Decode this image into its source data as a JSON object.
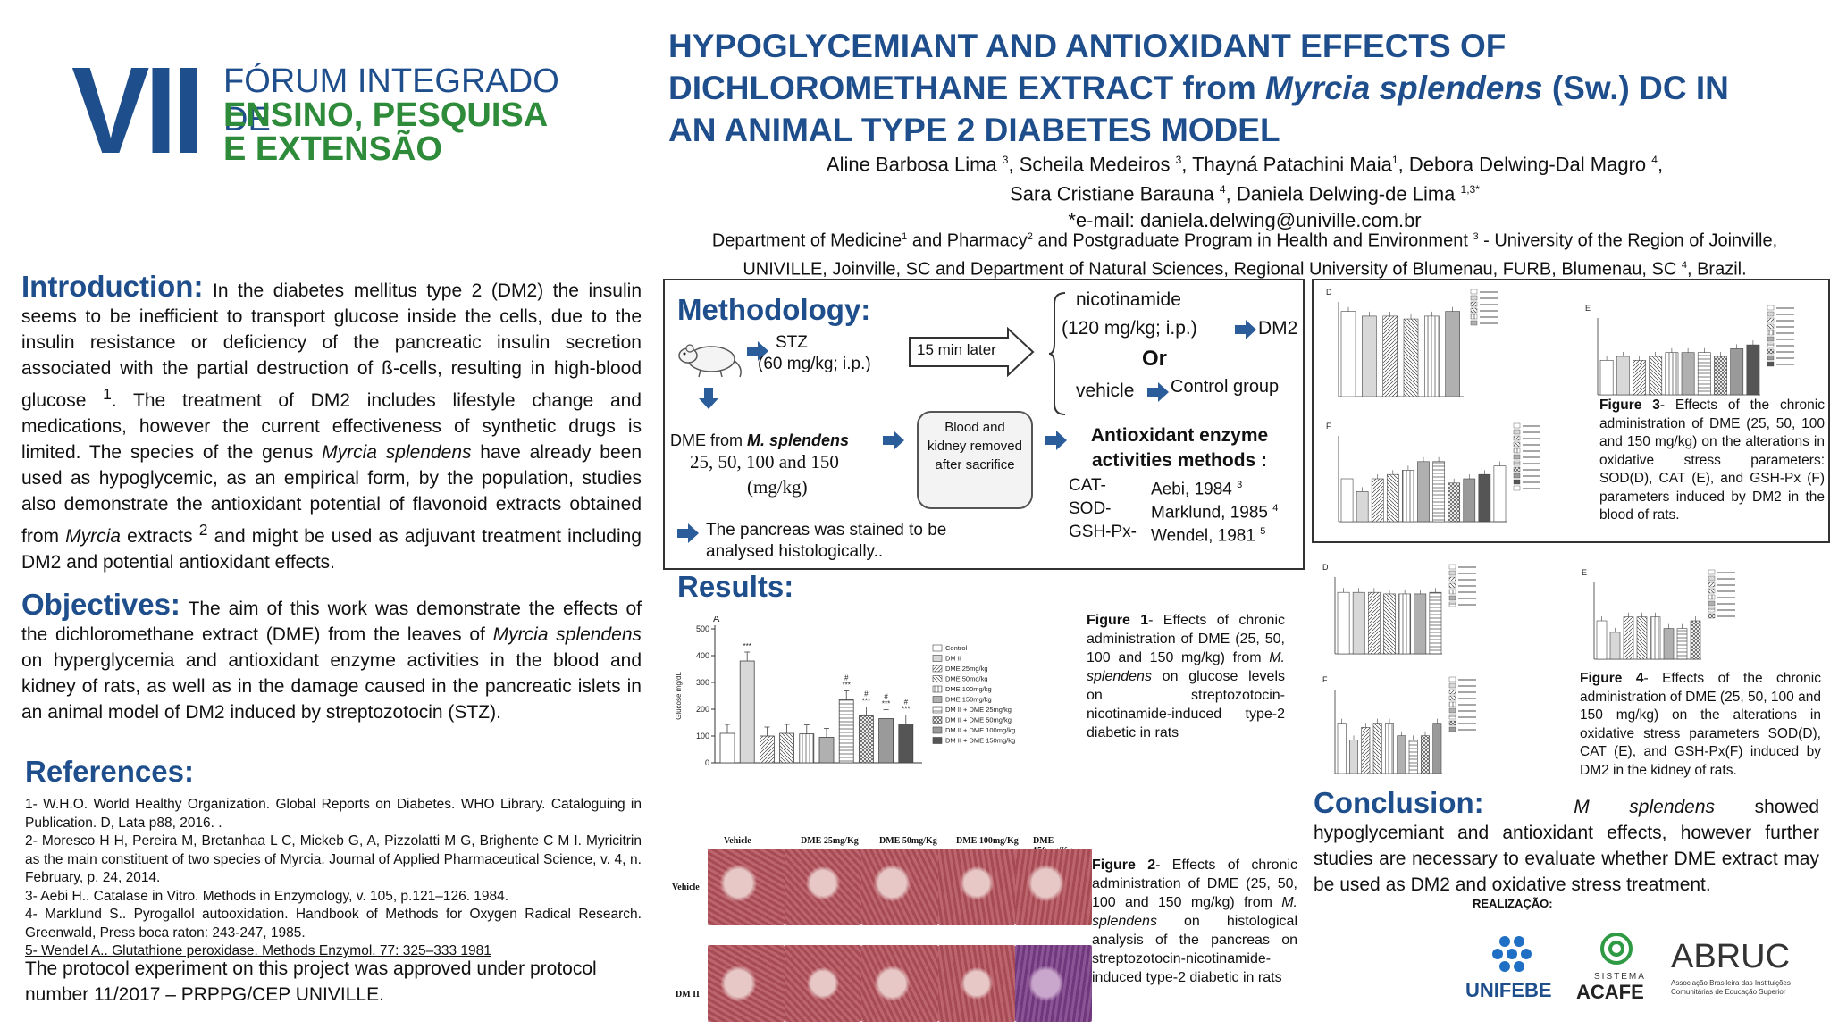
{
  "logo": {
    "roman": "VII",
    "line1": "FÓRUM INTEGRADO DE",
    "line2": "ENSINO, PESQUISA",
    "line3": "E EXTENSÃO"
  },
  "title": {
    "part1": "HYPOGLYCEMIANT AND ANTIOXIDANT EFFECTS OF",
    "part2a": "DICHLOROMETHANE EXTRACT from ",
    "part2_italic": "Myrcia splendens",
    "part2b": " (Sw.) DC IN",
    "part3": "AN ANIMAL TYPE 2 DIABETES MODEL"
  },
  "authors": {
    "a1": "Aline Barbosa Lima",
    "a1_sup": "3",
    "a2": ", Scheila Medeiros",
    "a2_sup": "3",
    "a3": ", Thayná Patachini Maia",
    "a3_sup": "1",
    "a4": ",  Debora Delwing-Dal Magro",
    "a4_sup": "4",
    "a4_end": ",",
    "a5": "Sara Cristiane Barauna",
    "a5_sup": "4",
    "a6": ", Daniela Delwing-de Lima",
    "a6_sup": "1,3*",
    "email": "*e-mail: daniela.delwing@univille.com.br"
  },
  "affiliation": {
    "p1": "Department of Medicine",
    "s1": "1",
    "p2": " and Pharmacy",
    "s2": "2",
    "p3": " and Postgraduate Program in Health and Environment ",
    "s3": "3",
    "p4": " - University of the Region of Joinville,",
    "p5": "UNIVILLE, Joinville, SC and Department of Natural Sciences, Regional University of Blumenau, FURB, Blumenau, SC ",
    "s5": "4",
    "p6": ", Brazil."
  },
  "introduction": {
    "heading": "Introduction:",
    "t1": " In the diabetes mellitus type 2 (DM2) the insulin seems to be inefficient to transport glucose inside the cells, due to the insulin resistance or deficiency of the pancreatic insulin secretion associated with the partial destruction of ß-cells, resulting in high-blood glucose ",
    "sup1": "1",
    "t2": ". The treatment of DM2 includes lifestyle change and medications, however the current effectiveness of synthetic drugs is limited. The species of the genus ",
    "i1": "Myrcia splendens",
    "t3": " have already been used as hypoglycemic, as an empirical form, by the population, studies also demonstrate the antioxidant potential of flavonoid extracts obtained from ",
    "i2": "Myrcia",
    "t4": " extracts ",
    "sup2": "2",
    "t5": " and might be used as adjuvant treatment including DM2 and potential antioxidant effects."
  },
  "objectives": {
    "heading": "Objectives:",
    "t1": " The aim of this work was demonstrate the effects of the dichloromethane extract (DME) from the leaves of ",
    "i1": "Myrcia splendens",
    "t2": " on hyperglycemia and antioxidant enzyme activities in the blood and kidney of rats, as well as in the damage caused in the pancreatic islets in an animal model of DM2 induced by streptozotocin (STZ)."
  },
  "references": {
    "heading": "References:",
    "items": [
      "1- W.H.O. World Healthy Organization. Global Reports on Diabetes. WHO Library. Cataloguing in Publication. D, Lata p88, 2016. .",
      "2- Moresco H H, Pereira M, Bretanhaa L C,  Mickeb G, A, Pizzolatti M G, Brighente C M I. Myricitrin as the main constituent of two species of Myrcia. Journal of Applied Pharmaceutical Science, v. 4, n. February, p. 24, 2014.",
      "3- Aebi H.. Catalase in Vitro. Methods in Enzymology, v. 105, p.121–126. 1984.",
      "4- Marklund S.. Pyrogallol autooxidation. Handbook of Methods for Oxygen Radical Research. Greenwald, Press boca raton: 243-247,  1985.",
      "5- Wendel A.. Glutathione peroxidase. Methods Enzymol. 77: 325–333  1981"
    ],
    "protocol": "The protocol experiment on this  project was approved under protocol number 11/2017 – PRPPG/CEP UNIVILLE."
  },
  "methodology": {
    "heading": "Methodology:",
    "stz": "STZ",
    "stz_dose": "(60 mg/kg; i.p.)",
    "wait": "15 min later",
    "nicotinamide": "nicotinamide",
    "nic_dose": "(120 mg/kg; i.p.)",
    "dm2": "DM2",
    "or": "Or",
    "vehicle": "vehicle",
    "control_group": "Control group",
    "dme_from": "DME from ",
    "species": "M. splendens",
    "doses": "25, 50, 100 and 150",
    "dose_unit": "(mg/kg)",
    "blood_kidney": "Blood and kidney removed after sacrifice",
    "antiox_title": "Antioxidant enzyme activities methods :",
    "cat": "CAT-",
    "cat_ref": "Aebi, 1984 ",
    "cat_sup": "3",
    "sod": "SOD-",
    "sod_ref": "Marklund, 1985 ",
    "sod_sup": "4",
    "gsh": "GSH-Px-",
    "gsh_ref": "Wendel, 1981 ",
    "gsh_sup": "5",
    "pancreas": "The pancreas was stained to be analysed histologically.."
  },
  "results": {
    "heading": "Results:"
  },
  "chart_data": [
    {
      "type": "bar",
      "title": "",
      "panel": "A",
      "ylabel": "Glucose mg/dL",
      "ylim": [
        0,
        500
      ],
      "yticks": [
        0,
        100,
        200,
        300,
        400,
        500
      ],
      "categories": [
        "Control",
        "DM II",
        "DME 25mg/kg",
        "DME 50mg/kg",
        "DME 100mg/kg",
        "DME 150mg/kg",
        "DM II + DME 25mg/kg",
        "DM II + DME 50mg/kg",
        "DM II + DME 100mg/kg",
        "DM II + DME 150mg/kg"
      ],
      "values": [
        110,
        380,
        100,
        110,
        108,
        95,
        235,
        175,
        165,
        145
      ],
      "annotations": [
        "",
        "***",
        "",
        "",
        "",
        "",
        "#\n***",
        "#\n***",
        "#\n***",
        "#\n***"
      ],
      "legend": "right"
    }
  ],
  "fig1": {
    "label": "Figure 1",
    "text": "- Effects of chronic administration of DME (25, 50, 100 and 150 mg/kg) from ",
    "italic": "M. splendens",
    "text2": " on glucose levels on streptozotocin- nicotinamide-induced type-2 diabetic in rats"
  },
  "fig2": {
    "label": "Figure 2",
    "text": "- Effects of chronic administration of DME (25, 50, 100 and 150 mg/kg) from ",
    "italic": "M. splendens",
    "text2": " on histological analysis of the pancreas on streptozotocin-nicotinamide-induced type-2 diabetic in rats",
    "col_labels": [
      "Vehicle",
      "DME 25mg/Kg",
      "DME 50mg/Kg",
      "DME 100mg/Kg",
      "DME 150mg/Kg"
    ],
    "row_labels": [
      "Vehicle",
      "DM II"
    ]
  },
  "fig3": {
    "label": "Figure 3",
    "text": "- Effects of the chronic administration of DME (25, 50, 100 and 150 mg/kg) on the alterations in oxidative stress parameters: SOD(D), CAT (E), and GSH-Px (F) parameters induced by DM2 in the blood of rats."
  },
  "fig4": {
    "label": "Figure 4",
    "text": "- Effects of the chronic administration of DME (25, 50, 100 and 150 mg/kg) on the alterations in oxidative stress parameters SOD(D), CAT (E), and GSH-Px(F) induced by DM2 in the kidney of rats."
  },
  "conclusion": {
    "heading": "Conclusion:",
    "italic": " M splendens",
    "text": " showed hypoglycemiant and antioxidant effects, however further studies are necessary to evaluate whether DME extract  may be used as DM2 and oxidative stress treatment."
  },
  "sponsors": {
    "realizacao": "REALIZAÇÃO:",
    "unifebe": "UNIFEBE",
    "acafe_small": "SISTEMA",
    "acafe": "ACAFE",
    "abruc": "ABRUC",
    "abruc_sub": "Associação Brasileira das Instituições Comunitárias de Educação Superior"
  },
  "colors": {
    "navy": "#1f4e8c",
    "green": "#2e8b3a",
    "arrow": "#2a5d9a"
  }
}
